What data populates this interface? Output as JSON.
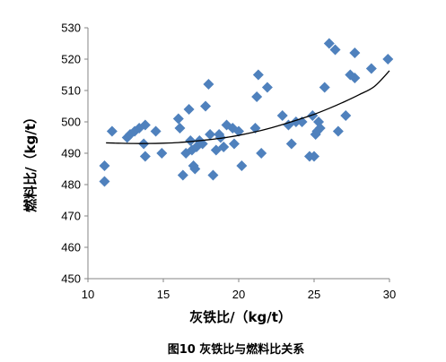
{
  "chart_data": {
    "type": "scatter",
    "title": "",
    "caption": "图10    灰铁比与燃料比关系",
    "xlabel": "灰铁比/（kg/t）",
    "ylabel": "燃料比/（kg/t）",
    "xlim": [
      10,
      30
    ],
    "ylim": [
      450,
      530
    ],
    "xticks": [
      10,
      15,
      20,
      25,
      30
    ],
    "yticks": [
      450,
      460,
      470,
      480,
      490,
      500,
      510,
      520,
      530
    ],
    "grid": false,
    "legend": "none",
    "marker_color": "#4F81BD",
    "trendline_color": "#000000",
    "trendline": {
      "type": "polynomial",
      "x": [
        11.2,
        12,
        13,
        14,
        15,
        16,
        17,
        18,
        19,
        20,
        21,
        22,
        23,
        24,
        25,
        26,
        27,
        28,
        29,
        30
      ],
      "y": [
        493.3,
        493.2,
        493.1,
        493.1,
        493.2,
        493.4,
        493.8,
        494.3,
        494.9,
        495.7,
        496.7,
        497.9,
        499.3,
        500.8,
        502.4,
        504.3,
        506.4,
        508.7,
        511.3,
        516.3
      ]
    },
    "points": [
      {
        "x": 11.1,
        "y": 486
      },
      {
        "x": 11.1,
        "y": 481
      },
      {
        "x": 11.6,
        "y": 497
      },
      {
        "x": 12.6,
        "y": 495
      },
      {
        "x": 12.8,
        "y": 496
      },
      {
        "x": 13.1,
        "y": 497
      },
      {
        "x": 13.4,
        "y": 498
      },
      {
        "x": 13.8,
        "y": 499
      },
      {
        "x": 13.7,
        "y": 493
      },
      {
        "x": 13.8,
        "y": 489
      },
      {
        "x": 14.5,
        "y": 497
      },
      {
        "x": 14.9,
        "y": 490
      },
      {
        "x": 16.0,
        "y": 501
      },
      {
        "x": 16.1,
        "y": 498
      },
      {
        "x": 16.3,
        "y": 483
      },
      {
        "x": 16.5,
        "y": 490
      },
      {
        "x": 16.7,
        "y": 504
      },
      {
        "x": 16.8,
        "y": 494
      },
      {
        "x": 16.9,
        "y": 491
      },
      {
        "x": 17.0,
        "y": 486
      },
      {
        "x": 17.1,
        "y": 485
      },
      {
        "x": 17.2,
        "y": 492
      },
      {
        "x": 17.4,
        "y": 494
      },
      {
        "x": 17.6,
        "y": 493
      },
      {
        "x": 17.8,
        "y": 505
      },
      {
        "x": 18.0,
        "y": 512
      },
      {
        "x": 18.1,
        "y": 496
      },
      {
        "x": 18.3,
        "y": 483
      },
      {
        "x": 18.5,
        "y": 491
      },
      {
        "x": 18.7,
        "y": 496
      },
      {
        "x": 18.8,
        "y": 495
      },
      {
        "x": 19.0,
        "y": 492
      },
      {
        "x": 19.2,
        "y": 499
      },
      {
        "x": 19.6,
        "y": 498
      },
      {
        "x": 19.7,
        "y": 493
      },
      {
        "x": 20.0,
        "y": 497
      },
      {
        "x": 20.2,
        "y": 486
      },
      {
        "x": 21.1,
        "y": 498
      },
      {
        "x": 21.2,
        "y": 508
      },
      {
        "x": 21.3,
        "y": 515
      },
      {
        "x": 21.5,
        "y": 490
      },
      {
        "x": 21.9,
        "y": 511
      },
      {
        "x": 22.9,
        "y": 502
      },
      {
        "x": 23.3,
        "y": 499
      },
      {
        "x": 23.5,
        "y": 493
      },
      {
        "x": 23.8,
        "y": 500
      },
      {
        "x": 24.2,
        "y": 500
      },
      {
        "x": 24.7,
        "y": 489
      },
      {
        "x": 24.9,
        "y": 502
      },
      {
        "x": 25.0,
        "y": 489
      },
      {
        "x": 25.1,
        "y": 496
      },
      {
        "x": 25.2,
        "y": 497
      },
      {
        "x": 25.3,
        "y": 500
      },
      {
        "x": 25.4,
        "y": 498
      },
      {
        "x": 25.7,
        "y": 511
      },
      {
        "x": 26.0,
        "y": 525
      },
      {
        "x": 26.4,
        "y": 523
      },
      {
        "x": 26.6,
        "y": 497
      },
      {
        "x": 27.1,
        "y": 502
      },
      {
        "x": 27.4,
        "y": 515
      },
      {
        "x": 27.7,
        "y": 514
      },
      {
        "x": 27.7,
        "y": 522
      },
      {
        "x": 28.8,
        "y": 517
      },
      {
        "x": 29.9,
        "y": 520
      }
    ]
  }
}
